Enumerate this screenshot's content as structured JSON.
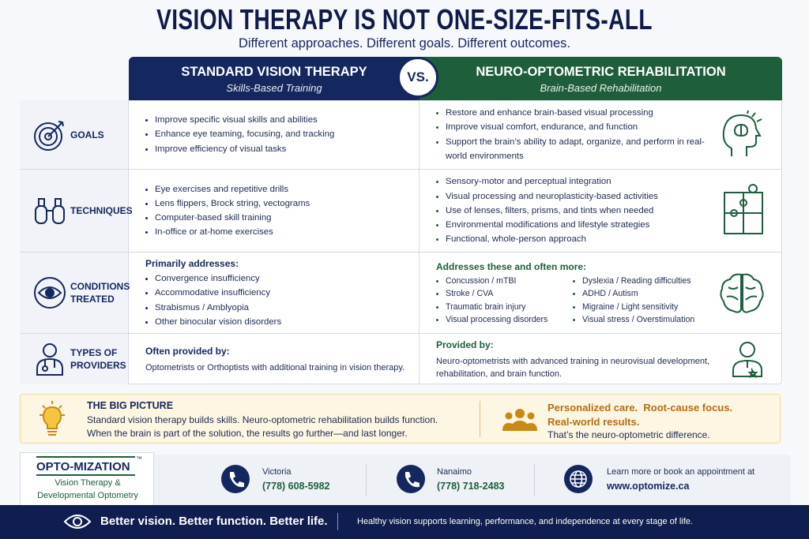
{
  "header": {
    "title": "VISION THERAPY IS NOT ONE-SIZE-FITS-ALL",
    "subtitle": "Different approaches. Different goals. Different outcomes."
  },
  "columns": {
    "left": {
      "title": "STANDARD VISION THERAPY",
      "subtitle": "Skills-Based Training"
    },
    "vs": "VS.",
    "right": {
      "title": "NEURO-OPTOMETRIC REHABILITATION",
      "subtitle": "Brain-Based Rehabilitation"
    }
  },
  "rows": [
    {
      "label": "GOALS",
      "left": {
        "items": [
          "Improve specific visual skills and abilities",
          "Enhance eye teaming, focusing, and tracking",
          "Improve efficiency of visual tasks"
        ]
      },
      "right": {
        "items": [
          "Restore and enhance brain-based visual processing",
          "Improve visual comfort, endurance, and function",
          "Support the brain’s ability to adapt, organize, and perform in real-world environments"
        ]
      }
    },
    {
      "label": "TECHNIQUES",
      "left": {
        "items": [
          "Eye exercises and repetitive drills",
          "Lens flippers, Brock string, vectograms",
          "Computer-based skill training",
          "In-office or at-home exercises"
        ]
      },
      "right": {
        "items": [
          "Sensory-motor and perceptual integration",
          "Visual processing and neuroplasticity-based activities",
          "Use of lenses, filters, prisms, and tints when needed",
          "Environmental modifications and lifestyle strategies",
          "Functional, whole-person approach"
        ]
      }
    },
    {
      "label": "CONDITIONS TREATED",
      "left": {
        "heading": "Primarily addresses:",
        "items": [
          "Convergence insufficiency",
          "Accommodative insufficiency",
          "Strabismus / Amblyopia",
          "Other binocular vision disorders"
        ]
      },
      "right": {
        "heading": "Addresses these and often more:",
        "items": [
          "Concussion / mTBI",
          "Stroke / CVA",
          "Traumatic brain injury",
          "Visual processing disorders",
          "Dyslexia / Reading difficulties",
          "ADHD / Autism",
          "Migraine / Light sensitivity",
          "Visual stress / Overstimulation"
        ]
      }
    },
    {
      "label": "TYPES OF PROVIDERS",
      "left": {
        "heading": "Often provided by:",
        "text": "Optometrists or Orthoptists with additional training in vision therapy."
      },
      "right": {
        "heading": "Provided by:",
        "text": "Neuro-optometrists with advanced training in neurovisual development, rehabilitation, and brain function."
      }
    }
  ],
  "big_picture": {
    "title": "THE BIG PICTURE",
    "lines": [
      "Standard vision therapy builds skills. Neuro-optometric rehabilitation builds function.",
      "When the brain is part of the solution, the results go further—and last longer."
    ],
    "highlights": [
      "Personalized care.  Root-cause focus.",
      "Real-world results."
    ],
    "closing": "That’s the neuro-optometric difference."
  },
  "contact": {
    "logo": {
      "name": "OPTO-MIZATION",
      "mark": "™",
      "line1": "Vision Therapy &",
      "line2": "Developmental Optometry"
    },
    "locations": [
      {
        "city": "Victoria",
        "phone": "(778) 608-5982"
      },
      {
        "city": "Nanaimo",
        "phone": "(778) 718-2483"
      }
    ],
    "web_prompt": "Learn more or book an appointment at",
    "website": "www.optomize.ca"
  },
  "footer": {
    "slogan": "Better vision. Better function. Better life.",
    "tagline": "Healthy vision supports learning, performance, and independence at every stage of life."
  }
}
